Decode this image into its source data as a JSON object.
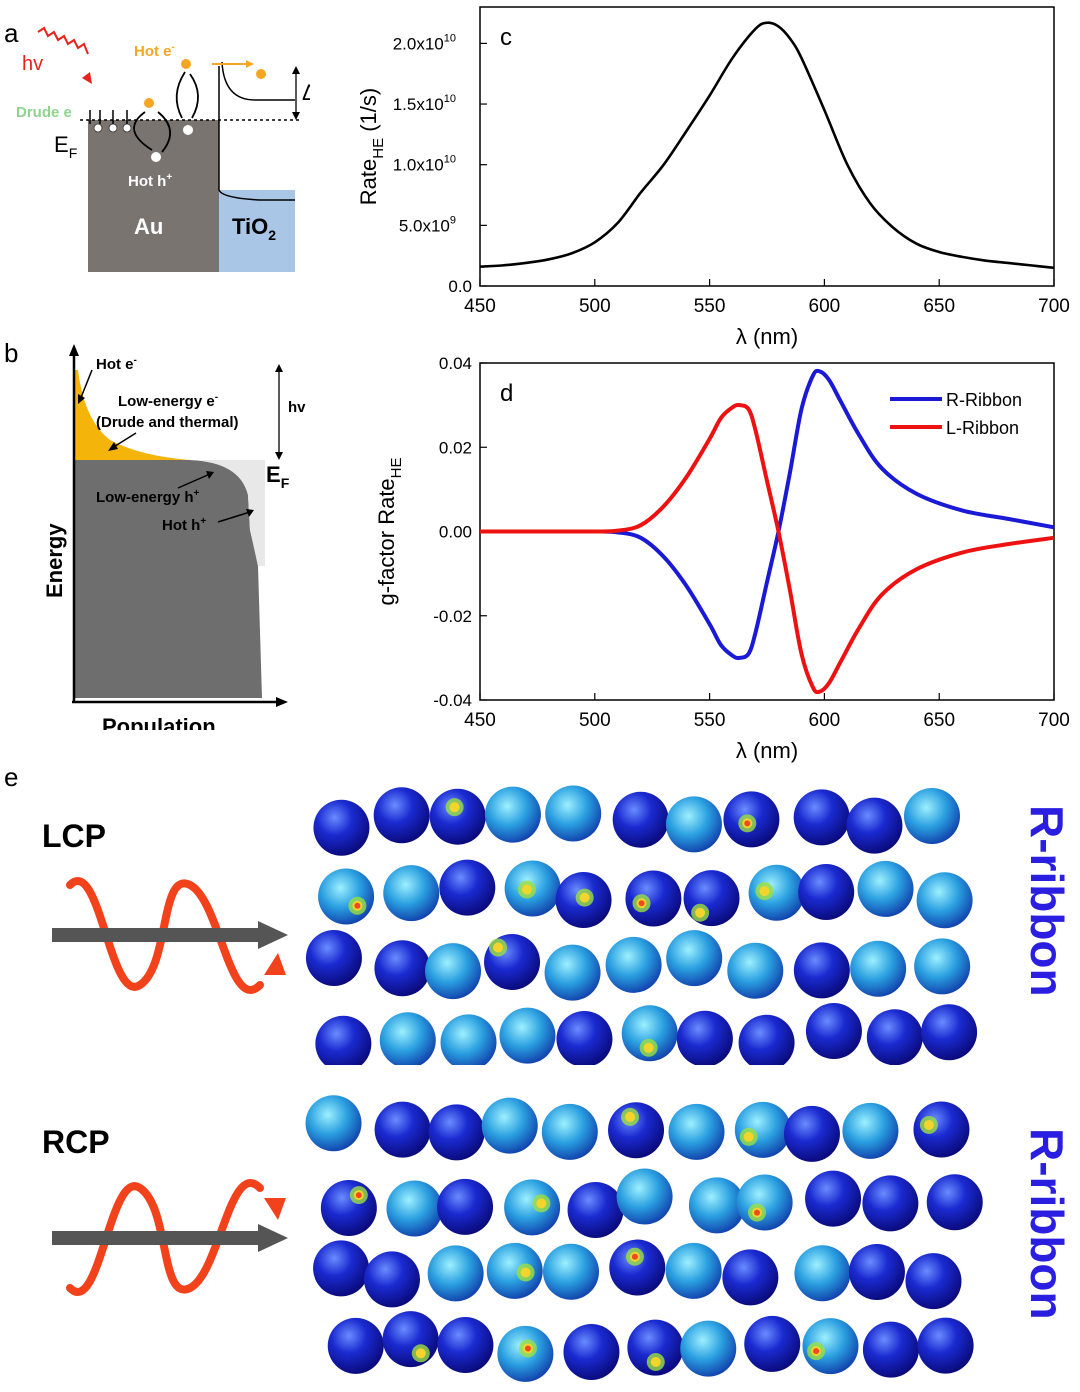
{
  "figure": {
    "panel_labels": {
      "a": "a",
      "b": "b",
      "c": "c",
      "d": "d",
      "e": "e"
    }
  },
  "panel_a": {
    "hv": "hv",
    "hot_e": "Hot e",
    "hot_e_sup": "-",
    "drude": "Drude e",
    "ef": "E",
    "ef_sub": "F",
    "hot_h": "Hot h",
    "hot_h_sup": "+",
    "au": "Au",
    "tio2": "TiO",
    "tio2_sub": "2",
    "delta_e": "ΔE",
    "delta_e_sub": "b",
    "colors": {
      "metal": "#7a7470",
      "oxide": "#a9c6e6",
      "hot": "#f5a623",
      "drude": "#8fd48f",
      "light": "#e8231c"
    }
  },
  "panel_b": {
    "hot_e": "Hot e",
    "hot_e_sup": "-",
    "low_e_line1": "Low-energy e",
    "low_e_sup": "-",
    "low_e_line2": "(Drude and thermal)",
    "hv": "hv",
    "ef": "E",
    "ef_sub": "F",
    "low_h": "Low-energy h",
    "low_h_sup": "+",
    "hot_h": "Hot h",
    "hot_h_sup": "+",
    "y_axis": "Energy",
    "x_axis": "Population"
  },
  "chart_data": [
    {
      "type": "line",
      "panel": "c",
      "ylabel": "Rate",
      "ylabel_sub": "HE",
      "ylabel_unit": "(1/s)",
      "xlabel": "λ (nm)",
      "xlim": [
        450,
        700
      ],
      "ylim": [
        0,
        23000000000.0
      ],
      "xticks": [
        450,
        500,
        550,
        600,
        650,
        700
      ],
      "yticks": [
        {
          "value": 0,
          "label": "0.0"
        },
        {
          "value": 5000000000.0,
          "label": "5.0x10",
          "exp": "9"
        },
        {
          "value": 10000000000.0,
          "label": "1.0x10",
          "exp": "10"
        },
        {
          "value": 15000000000.0,
          "label": "1.5x10",
          "exp": "10"
        },
        {
          "value": 20000000000.0,
          "label": "2.0x10",
          "exp": "10"
        }
      ],
      "series": [
        {
          "color": "#000000",
          "x": [
            450,
            460,
            470,
            480,
            490,
            500,
            510,
            520,
            530,
            540,
            550,
            560,
            570,
            575,
            580,
            585,
            590,
            600,
            610,
            620,
            630,
            640,
            650,
            660,
            670,
            680,
            690,
            700
          ],
          "y": [
            1600000000.0,
            1700000000.0,
            1900000000.0,
            2200000000.0,
            2700000000.0,
            3600000000.0,
            5200000000.0,
            7700000000.0,
            10000000000.0,
            12800000000.0,
            15700000000.0,
            18800000000.0,
            21200000000.0,
            21700000000.0,
            21400000000.0,
            20400000000.0,
            18800000000.0,
            14500000000.0,
            10000000000.0,
            6800000000.0,
            4800000000.0,
            3500000000.0,
            2800000000.0,
            2400000000.0,
            2100000000.0,
            1900000000.0,
            1700000000.0,
            1500000000.0
          ]
        }
      ]
    },
    {
      "type": "line",
      "panel": "d",
      "ylabel": "g-factor Rate",
      "ylabel_sub": "HE",
      "xlabel": "λ (nm)",
      "xlim": [
        450,
        700
      ],
      "ylim": [
        -0.04,
        0.04
      ],
      "xticks": [
        450,
        500,
        550,
        600,
        650,
        700
      ],
      "yticks": [
        {
          "value": -0.04,
          "label": "-0.04"
        },
        {
          "value": -0.02,
          "label": "-0.02"
        },
        {
          "value": 0,
          "label": "0.00"
        },
        {
          "value": 0.02,
          "label": "0.02"
        },
        {
          "value": 0.04,
          "label": "0.04"
        }
      ],
      "series": [
        {
          "name": "R-Ribbon",
          "color": "#1a1ad6",
          "x": [
            450,
            480,
            500,
            510,
            520,
            530,
            540,
            550,
            555,
            560,
            563,
            567,
            570,
            575,
            580,
            585,
            590,
            595,
            598,
            602,
            607,
            615,
            625,
            640,
            660,
            680,
            700
          ],
          "y": [
            0,
            0,
            0,
            -0.0002,
            -0.0015,
            -0.006,
            -0.013,
            -0.022,
            -0.027,
            -0.0295,
            -0.03,
            -0.029,
            -0.024,
            -0.012,
            0.0,
            0.014,
            0.029,
            0.037,
            0.038,
            0.036,
            0.031,
            0.023,
            0.015,
            0.009,
            0.005,
            0.003,
            0.001
          ]
        },
        {
          "name": "L-Ribbon",
          "color": "#ee1111",
          "x": [
            450,
            480,
            500,
            510,
            520,
            530,
            540,
            550,
            555,
            560,
            563,
            567,
            570,
            575,
            580,
            585,
            590,
            595,
            598,
            602,
            607,
            615,
            625,
            640,
            660,
            680,
            700
          ],
          "y": [
            0,
            0,
            0,
            0.0002,
            0.0015,
            0.006,
            0.013,
            0.022,
            0.027,
            0.0295,
            0.03,
            0.029,
            0.024,
            0.012,
            0.0,
            -0.014,
            -0.029,
            -0.037,
            -0.038,
            -0.036,
            -0.031,
            -0.023,
            -0.015,
            -0.009,
            -0.005,
            -0.003,
            -0.0015
          ]
        }
      ]
    }
  ],
  "panel_e": {
    "lcp": "LCP",
    "rcp": "RCP",
    "ribbon_top": "R-ribbon",
    "ribbon_bottom": "R-ribbon",
    "ribbon_color": "#2a1ee0",
    "hotspot_colors": [
      "#36c8e8",
      "#9be040",
      "#f2d42c",
      "#f04a20"
    ]
  }
}
